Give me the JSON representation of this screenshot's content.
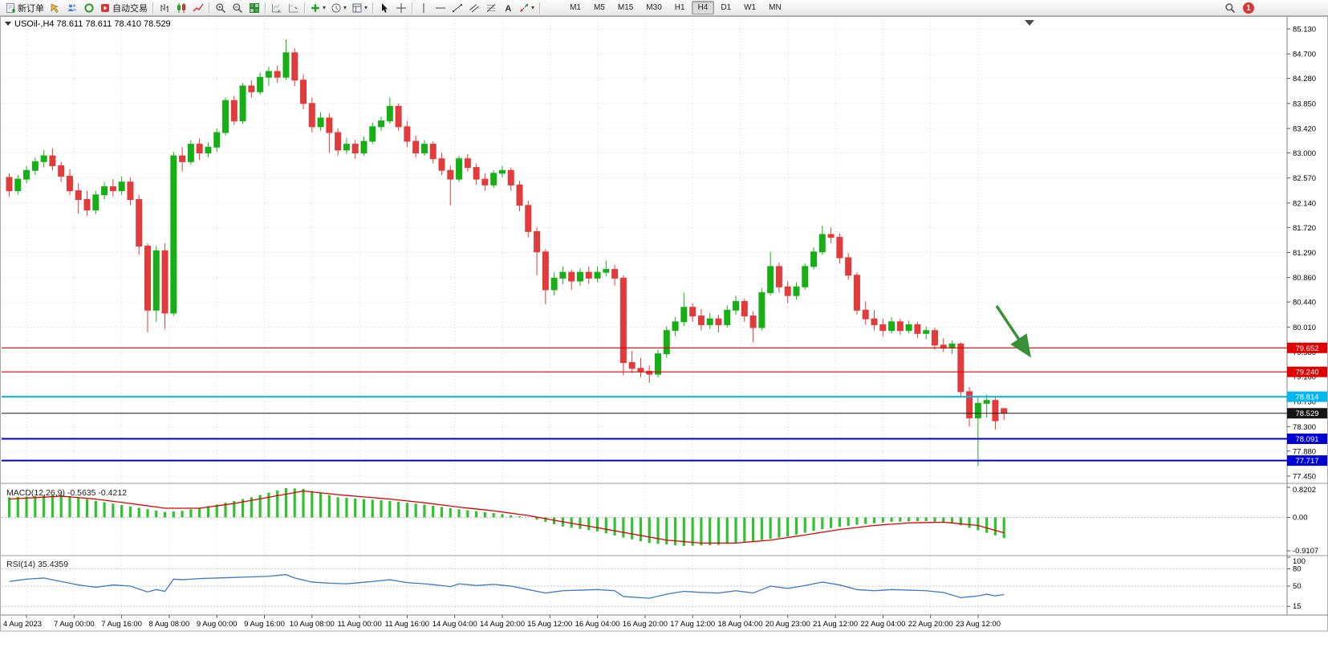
{
  "toolbar": {
    "items": [
      {
        "icon": "new-order",
        "label": "新订单",
        "name": "new-order-button"
      },
      {
        "icon": "chart-window",
        "name": "open-chart-button"
      },
      {
        "icon": "profiles",
        "name": "profiles-button"
      },
      {
        "icon": "data-window",
        "name": "data-window-button"
      },
      {
        "icon": "auto-trading",
        "label": "自动交易",
        "name": "auto-trading-button"
      },
      {
        "sep": true
      },
      {
        "icon": "bar-chart",
        "name": "bar-chart-button"
      },
      {
        "icon": "candles",
        "name": "candlestick-chart-button"
      },
      {
        "icon": "line-chart",
        "name": "line-chart-button"
      },
      {
        "sep": true
      },
      {
        "icon": "zoom-in",
        "name": "zoom-in-button"
      },
      {
        "icon": "zoom-out",
        "name": "zoom-out-button"
      },
      {
        "icon": "tile-windows",
        "name": "tile-windows-button"
      },
      {
        "sep": true
      },
      {
        "icon": "auto-scroll",
        "name": "auto-scroll-button"
      },
      {
        "icon": "chart-shift",
        "name": "chart-shift-button"
      },
      {
        "sep": true
      },
      {
        "icon": "indicators",
        "name": "indicators-button",
        "dropdown": true
      },
      {
        "icon": "periods",
        "name": "periods-button",
        "dropdown": true
      },
      {
        "icon": "templates",
        "name": "templates-button",
        "dropdown": true
      },
      {
        "sep": true
      },
      {
        "icon": "cursor",
        "name": "cursor-tool-button"
      },
      {
        "icon": "crosshair",
        "name": "crosshair-tool-button"
      },
      {
        "sep": true
      },
      {
        "icon": "vline",
        "name": "vertical-line-tool-button"
      },
      {
        "icon": "hline",
        "name": "horizontal-line-tool-button"
      },
      {
        "icon": "trendline",
        "name": "trendline-tool-button"
      },
      {
        "icon": "channel",
        "name": "channel-tool-button"
      },
      {
        "icon": "fibonacci",
        "name": "fibonacci-tool-button"
      },
      {
        "icon": "text",
        "name": "text-tool-button"
      },
      {
        "icon": "arrows",
        "name": "arrows-tool-button",
        "dropdown": true
      },
      {
        "sep": true
      }
    ],
    "timeframes": [
      "M1",
      "M5",
      "M15",
      "M30",
      "H1",
      "H4",
      "D1",
      "W1",
      "MN"
    ],
    "active_timeframe": "H4",
    "notification_count": "1"
  },
  "chart": {
    "symbol_line": "USOil-,H4 78.611 78.611 78.410 78.529",
    "price_axis_labels": [
      "85.130",
      "84.700",
      "84.280",
      "83.850",
      "83.420",
      "83.000",
      "82.570",
      "82.140",
      "81.720",
      "81.290",
      "80.860",
      "80.440",
      "80.010",
      "79.580",
      "79.160",
      "78.730",
      "78.300",
      "77.880",
      "77.450"
    ],
    "time_axis_labels": [
      "4 Aug 2023",
      "7 Aug 00:00",
      "7 Aug 16:00",
      "8 Aug 08:00",
      "9 Aug 00:00",
      "9 Aug 16:00",
      "10 Aug 08:00",
      "11 Aug 00:00",
      "11 Aug 16:00",
      "14 Aug 04:00",
      "14 Aug 20:00",
      "15 Aug 12:00",
      "16 Aug 04:00",
      "16 Aug 20:00",
      "17 Aug 12:00",
      "18 Aug 04:00",
      "20 Aug 23:00",
      "21 Aug 12:00",
      "22 Aug 04:00",
      "22 Aug 20:00",
      "23 Aug 12:00"
    ],
    "hlines": [
      {
        "price": 79.652,
        "label": "79.652",
        "color": "#e00000",
        "width": 1.2
      },
      {
        "price": 79.24,
        "label": "79.240",
        "color": "#e00000",
        "width": 1.2
      },
      {
        "price": 78.814,
        "label": "78.814",
        "color": "#00b7ef",
        "width": 2
      },
      {
        "price": 78.529,
        "label": "78.529",
        "color": "#151515",
        "width": 1.1
      },
      {
        "price": 78.091,
        "label": "78.091",
        "color": "#0000d2",
        "width": 2
      },
      {
        "price": 77.717,
        "label": "77.717",
        "color": "#0000d2",
        "width": 2
      }
    ],
    "colors": {
      "bull": "#16b016",
      "bear": "#e23b3b",
      "grid": "#d9d9d9",
      "macd_bar": "#2fc42f",
      "macd_signal": "#e00000",
      "rsi_line": "#3c78c8",
      "axis_text": "#000000",
      "arrow": "#389038"
    }
  },
  "chart_data": {
    "type": "candlestick",
    "symbol": "USOil-",
    "timeframe": "H4",
    "ylim": [
      77.45,
      85.13
    ],
    "ohlc": [
      [
        82.58,
        82.65,
        82.25,
        82.35
      ],
      [
        82.35,
        82.62,
        82.28,
        82.55
      ],
      [
        82.55,
        82.78,
        82.48,
        82.7
      ],
      [
        82.7,
        82.92,
        82.62,
        82.85
      ],
      [
        82.85,
        83.05,
        82.75,
        82.95
      ],
      [
        82.95,
        83.08,
        82.7,
        82.78
      ],
      [
        82.78,
        82.85,
        82.5,
        82.6
      ],
      [
        82.6,
        82.72,
        82.28,
        82.35
      ],
      [
        82.35,
        82.48,
        81.95,
        82.2
      ],
      [
        82.2,
        82.35,
        81.92,
        82.02
      ],
      [
        82.02,
        82.35,
        81.95,
        82.28
      ],
      [
        82.28,
        82.5,
        82.2,
        82.42
      ],
      [
        82.42,
        82.55,
        82.25,
        82.35
      ],
      [
        82.35,
        82.6,
        82.28,
        82.5
      ],
      [
        82.5,
        82.58,
        82.1,
        82.2
      ],
      [
        82.2,
        82.28,
        81.25,
        81.4
      ],
      [
        81.4,
        81.45,
        79.92,
        80.3
      ],
      [
        80.3,
        81.4,
        80.1,
        81.32
      ],
      [
        81.32,
        81.45,
        79.98,
        80.25
      ],
      [
        80.25,
        83.02,
        80.2,
        82.95
      ],
      [
        82.95,
        83.1,
        82.68,
        82.85
      ],
      [
        82.85,
        83.22,
        82.8,
        83.15
      ],
      [
        83.15,
        83.25,
        82.88,
        83.0
      ],
      [
        83.0,
        83.18,
        82.92,
        83.1
      ],
      [
        83.1,
        83.42,
        83.02,
        83.35
      ],
      [
        83.35,
        83.95,
        83.3,
        83.9
      ],
      [
        83.9,
        83.98,
        83.48,
        83.55
      ],
      [
        83.55,
        84.2,
        83.5,
        84.15
      ],
      [
        84.15,
        84.25,
        83.95,
        84.05
      ],
      [
        84.05,
        84.38,
        84.0,
        84.3
      ],
      [
        84.3,
        84.48,
        84.15,
        84.4
      ],
      [
        84.4,
        84.5,
        84.2,
        84.3
      ],
      [
        84.3,
        84.95,
        84.25,
        84.72
      ],
      [
        84.72,
        84.8,
        84.15,
        84.25
      ],
      [
        84.25,
        84.35,
        83.75,
        83.85
      ],
      [
        83.85,
        83.95,
        83.35,
        83.45
      ],
      [
        83.45,
        83.7,
        83.38,
        83.6
      ],
      [
        83.6,
        83.68,
        83.0,
        83.35
      ],
      [
        83.35,
        83.42,
        82.95,
        83.05
      ],
      [
        83.05,
        83.25,
        82.98,
        83.15
      ],
      [
        83.15,
        83.22,
        82.9,
        83.0
      ],
      [
        83.0,
        83.28,
        82.95,
        83.2
      ],
      [
        83.2,
        83.52,
        83.15,
        83.45
      ],
      [
        83.45,
        83.62,
        83.38,
        83.55
      ],
      [
        83.55,
        83.95,
        83.5,
        83.8
      ],
      [
        83.8,
        83.85,
        83.38,
        83.45
      ],
      [
        83.45,
        83.55,
        83.1,
        83.2
      ],
      [
        83.2,
        83.3,
        82.92,
        83.0
      ],
      [
        83.0,
        83.22,
        82.95,
        83.15
      ],
      [
        83.15,
        83.2,
        82.82,
        82.9
      ],
      [
        82.9,
        83.0,
        82.62,
        82.7
      ],
      [
        82.7,
        82.78,
        82.1,
        82.55
      ],
      [
        82.55,
        82.95,
        82.5,
        82.9
      ],
      [
        82.9,
        82.98,
        82.68,
        82.75
      ],
      [
        82.75,
        82.82,
        82.45,
        82.55
      ],
      [
        82.55,
        82.65,
        82.35,
        82.45
      ],
      [
        82.45,
        82.7,
        82.4,
        82.65
      ],
      [
        82.65,
        82.78,
        82.58,
        82.7
      ],
      [
        82.7,
        82.75,
        82.35,
        82.45
      ],
      [
        82.45,
        82.52,
        82.0,
        82.1
      ],
      [
        82.1,
        82.18,
        81.55,
        81.65
      ],
      [
        81.65,
        81.72,
        80.9,
        81.3
      ],
      [
        81.3,
        81.35,
        80.4,
        80.65
      ],
      [
        80.65,
        80.95,
        80.55,
        80.85
      ],
      [
        80.85,
        81.05,
        80.75,
        80.95
      ],
      [
        80.95,
        81.0,
        80.65,
        80.8
      ],
      [
        80.8,
        81.02,
        80.72,
        80.95
      ],
      [
        80.95,
        81.05,
        80.75,
        80.85
      ],
      [
        80.85,
        81.05,
        80.78,
        80.95
      ],
      [
        80.95,
        81.15,
        80.88,
        81.0
      ],
      [
        81.0,
        81.08,
        80.72,
        80.85
      ],
      [
        80.85,
        80.9,
        79.18,
        79.4
      ],
      [
        79.4,
        79.6,
        79.22,
        79.3
      ],
      [
        79.3,
        79.48,
        79.15,
        79.25
      ],
      [
        79.25,
        79.35,
        79.05,
        79.2
      ],
      [
        79.2,
        79.62,
        79.15,
        79.55
      ],
      [
        79.55,
        80.02,
        79.48,
        79.95
      ],
      [
        79.95,
        80.18,
        79.85,
        80.1
      ],
      [
        80.1,
        80.6,
        80.02,
        80.35
      ],
      [
        80.35,
        80.42,
        80.1,
        80.2
      ],
      [
        80.2,
        80.32,
        79.95,
        80.05
      ],
      [
        80.05,
        80.25,
        79.98,
        80.15
      ],
      [
        80.15,
        80.22,
        79.92,
        80.05
      ],
      [
        80.05,
        80.38,
        80.0,
        80.3
      ],
      [
        80.3,
        80.55,
        80.22,
        80.45
      ],
      [
        80.45,
        80.5,
        80.1,
        80.2
      ],
      [
        80.2,
        80.28,
        79.75,
        80.0
      ],
      [
        80.0,
        80.68,
        79.95,
        80.6
      ],
      [
        80.6,
        81.3,
        80.55,
        81.05
      ],
      [
        81.05,
        81.12,
        80.6,
        80.7
      ],
      [
        80.7,
        80.8,
        80.42,
        80.55
      ],
      [
        80.55,
        80.78,
        80.48,
        80.7
      ],
      [
        80.7,
        81.1,
        80.65,
        81.05
      ],
      [
        81.05,
        81.38,
        81.0,
        81.3
      ],
      [
        81.3,
        81.75,
        81.25,
        81.6
      ],
      [
        81.6,
        81.72,
        81.45,
        81.55
      ],
      [
        81.55,
        81.62,
        81.1,
        81.2
      ],
      [
        81.2,
        81.28,
        80.82,
        80.9
      ],
      [
        80.9,
        80.95,
        80.22,
        80.3
      ],
      [
        80.3,
        80.45,
        80.05,
        80.15
      ],
      [
        80.15,
        80.3,
        79.95,
        80.05
      ],
      [
        80.05,
        80.15,
        79.85,
        79.95
      ],
      [
        79.95,
        80.18,
        79.9,
        80.1
      ],
      [
        80.1,
        80.15,
        79.88,
        79.95
      ],
      [
        79.95,
        80.12,
        79.9,
        80.05
      ],
      [
        80.05,
        80.1,
        79.82,
        79.9
      ],
      [
        79.9,
        80.02,
        79.8,
        79.95
      ],
      [
        79.95,
        80.0,
        79.62,
        79.7
      ],
      [
        79.7,
        79.82,
        79.58,
        79.65
      ],
      [
        79.65,
        79.78,
        79.55,
        79.72
      ],
      [
        79.72,
        79.75,
        78.8,
        78.9
      ],
      [
        78.9,
        78.98,
        78.3,
        78.45
      ],
      [
        78.45,
        78.8,
        77.62,
        78.7
      ],
      [
        78.7,
        78.85,
        78.45,
        78.75
      ],
      [
        78.75,
        78.8,
        78.25,
        78.4
      ],
      [
        78.61,
        78.61,
        78.41,
        78.53
      ]
    ],
    "macd": {
      "name": "MACD(12,26,9)",
      "value": "-0.5635",
      "signal_value": "-0.4212",
      "display": "MACD(12,26,9) -0.5635 -0.4212",
      "scale_labels": [
        "0.8202",
        "0.00",
        "-0.9107"
      ],
      "range": [
        -0.9107,
        0.8202
      ],
      "histogram": [
        0.55,
        0.562,
        0.573,
        0.585,
        0.597,
        0.608,
        0.62,
        0.578,
        0.535,
        0.493,
        0.45,
        0.413,
        0.375,
        0.338,
        0.3,
        0.263,
        0.225,
        0.188,
        0.15,
        0.165,
        0.18,
        0.223,
        0.265,
        0.308,
        0.35,
        0.4,
        0.45,
        0.5,
        0.55,
        0.613,
        0.675,
        0.738,
        0.8,
        0.79,
        0.78,
        0.723,
        0.665,
        0.608,
        0.55,
        0.533,
        0.517,
        0.5,
        0.483,
        0.467,
        0.45,
        0.425,
        0.4,
        0.375,
        0.35,
        0.318,
        0.285,
        0.253,
        0.22,
        0.195,
        0.17,
        0.145,
        0.12,
        0.09,
        0.06,
        0.03,
        0.0,
        -0.063,
        -0.125,
        -0.188,
        -0.25,
        -0.283,
        -0.315,
        -0.348,
        -0.38,
        -0.437,
        -0.493,
        -0.55,
        -0.6,
        -0.65,
        -0.7,
        -0.72,
        -0.74,
        -0.76,
        -0.78,
        -0.773,
        -0.765,
        -0.758,
        -0.75,
        -0.725,
        -0.7,
        -0.675,
        -0.65,
        -0.618,
        -0.585,
        -0.553,
        -0.52,
        -0.47,
        -0.42,
        -0.37,
        -0.32,
        -0.29,
        -0.26,
        -0.23,
        -0.2,
        -0.18,
        -0.16,
        -0.14,
        -0.12,
        -0.115,
        -0.11,
        -0.105,
        -0.1,
        -0.117,
        -0.133,
        -0.15,
        -0.217,
        -0.283,
        -0.35,
        -0.421,
        -0.492,
        -0.5635
      ],
      "signal": [
        0.5,
        0.513,
        0.527,
        0.54,
        0.553,
        0.567,
        0.58,
        0.56,
        0.54,
        0.52,
        0.5,
        0.47,
        0.44,
        0.41,
        0.38,
        0.348,
        0.315,
        0.283,
        0.25,
        0.25,
        0.25,
        0.25,
        0.25,
        0.283,
        0.315,
        0.348,
        0.38,
        0.423,
        0.465,
        0.508,
        0.55,
        0.593,
        0.635,
        0.678,
        0.72,
        0.695,
        0.67,
        0.645,
        0.62,
        0.6,
        0.58,
        0.56,
        0.54,
        0.52,
        0.5,
        0.475,
        0.45,
        0.425,
        0.4,
        0.37,
        0.34,
        0.31,
        0.28,
        0.255,
        0.23,
        0.205,
        0.18,
        0.148,
        0.115,
        0.083,
        0.05,
        0.008,
        -0.035,
        -0.078,
        -0.12,
        -0.16,
        -0.2,
        -0.24,
        -0.28,
        -0.323,
        -0.365,
        -0.408,
        -0.45,
        -0.493,
        -0.535,
        -0.578,
        -0.62,
        -0.64,
        -0.66,
        -0.68,
        -0.7,
        -0.7,
        -0.7,
        -0.7,
        -0.7,
        -0.68,
        -0.66,
        -0.64,
        -0.62,
        -0.585,
        -0.55,
        -0.515,
        -0.48,
        -0.443,
        -0.405,
        -0.368,
        -0.33,
        -0.303,
        -0.275,
        -0.248,
        -0.22,
        -0.203,
        -0.185,
        -0.168,
        -0.15,
        -0.145,
        -0.14,
        -0.135,
        -0.13,
        -0.153,
        -0.175,
        -0.198,
        -0.22,
        -0.287,
        -0.354,
        -0.4212
      ]
    },
    "rsi": {
      "name": "RSI(14)",
      "value": "35.4359",
      "display": "RSI(14) 35.4359",
      "scale_labels": [
        "100",
        "80",
        "50",
        "15"
      ],
      "range": [
        0,
        100
      ],
      "values": [
        58,
        60,
        62,
        63,
        64,
        61,
        58,
        55,
        52,
        50,
        48,
        50,
        52,
        51,
        50,
        45,
        40,
        44,
        41,
        62,
        61,
        62,
        63,
        63.5,
        64,
        64.5,
        65,
        65.5,
        66,
        66.5,
        67,
        68.5,
        70,
        64,
        60.5,
        57,
        56,
        55,
        54.5,
        54,
        55.3,
        56.7,
        58,
        59.5,
        61,
        58.5,
        56,
        55,
        54,
        52.5,
        51,
        49,
        54,
        52.5,
        51,
        52,
        53,
        51.5,
        50,
        47,
        44,
        41,
        38,
        40,
        42,
        42.5,
        43,
        43.5,
        44,
        43,
        42,
        32,
        31,
        30,
        29,
        32.5,
        36,
        38.5,
        41,
        40,
        39,
        38.5,
        38,
        40,
        42,
        40,
        38,
        44,
        50,
        48,
        46,
        48.5,
        51,
        54,
        57,
        54.5,
        52,
        48,
        44,
        43,
        42,
        43,
        44,
        43.5,
        43,
        42.5,
        42,
        40.5,
        39,
        34.5,
        30,
        31.5,
        33,
        36,
        33,
        35.4
      ]
    }
  }
}
